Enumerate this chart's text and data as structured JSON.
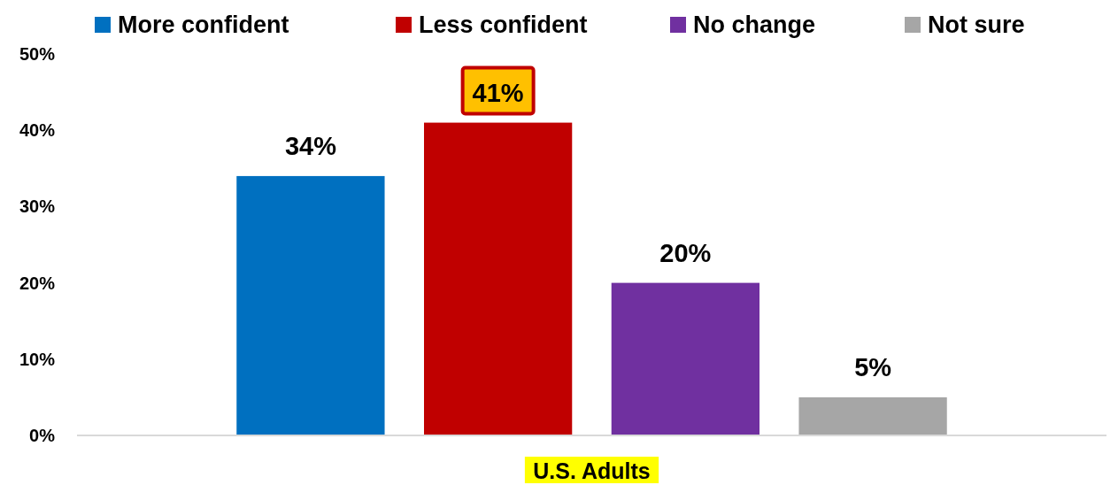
{
  "chart_data": {
    "type": "bar",
    "categories": [
      "U.S. Adults"
    ],
    "series": [
      {
        "name": "More confident",
        "color": "#0070c0",
        "values": [
          34
        ],
        "value_labels": [
          "34%"
        ]
      },
      {
        "name": "Less confident",
        "color": "#c00000",
        "values": [
          41
        ],
        "value_labels": [
          "41%"
        ]
      },
      {
        "name": "No change",
        "color": "#7030a0",
        "values": [
          20
        ],
        "value_labels": [
          "20%"
        ]
      },
      {
        "name": "Not sure",
        "color": "#a6a6a6",
        "values": [
          5
        ],
        "value_labels": [
          "5%"
        ]
      }
    ],
    "ylim": [
      0,
      50
    ],
    "yticks": [
      {
        "value": 0,
        "label": "0%"
      },
      {
        "value": 10,
        "label": "10%"
      },
      {
        "value": 20,
        "label": "20%"
      },
      {
        "value": 30,
        "label": "30%"
      },
      {
        "value": 40,
        "label": "40%"
      },
      {
        "value": 50,
        "label": "50%"
      }
    ],
    "legend": "top",
    "grid": false
  }
}
